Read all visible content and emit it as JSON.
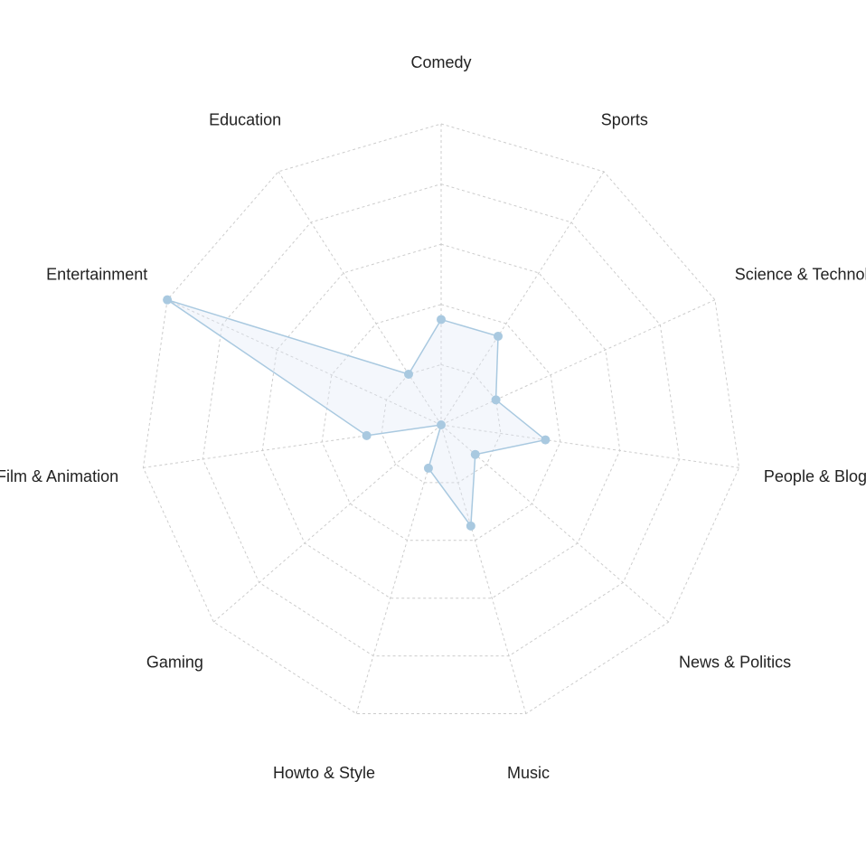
{
  "chart_data": {
    "type": "radar",
    "title": "",
    "categories": [
      "Comedy",
      "Sports",
      "Science & Technology",
      "People & Blogs",
      "News & Politics",
      "Music",
      "Howto & Style",
      "Gaming",
      "Film & Animation",
      "Entertainment",
      "Education"
    ],
    "series": [
      {
        "values": [
          1.75,
          1.75,
          1.0,
          1.75,
          0.75,
          1.75,
          0.75,
          0.0,
          1.25,
          5.0,
          1.0
        ],
        "color": "#a9c9e0",
        "fill": "#dfe9f5"
      }
    ],
    "rlim": [
      0,
      5
    ],
    "ring_count": 5,
    "grid": true,
    "grid_style": "dashed",
    "grid_color": "#cccccc",
    "legend": "none"
  }
}
